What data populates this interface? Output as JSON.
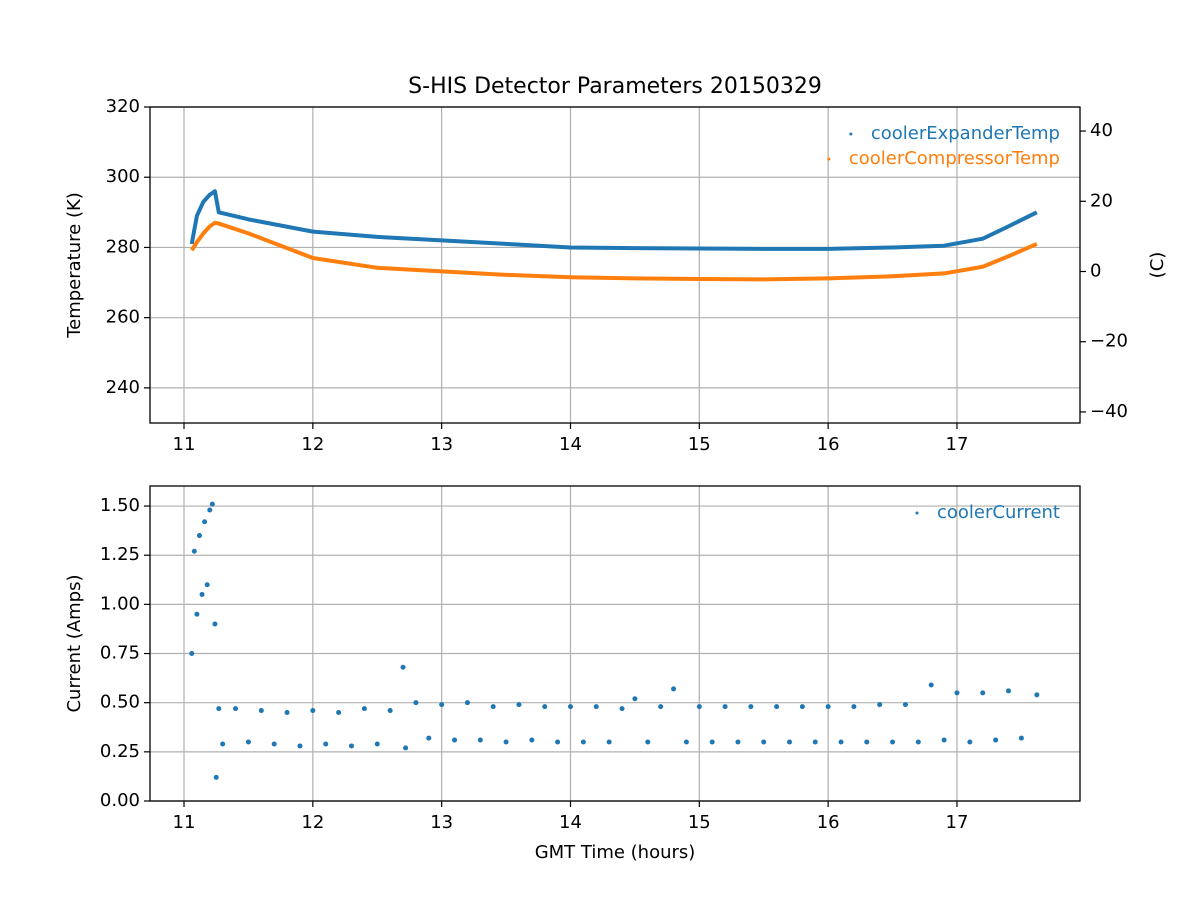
{
  "chart_data": [
    {
      "type": "line",
      "title": "S-HIS Detector Parameters 20150329",
      "ylabel": "Temperature (K)",
      "y2label": "(C)",
      "x": [
        11.06,
        11.1,
        11.15,
        11.2,
        11.24,
        11.27,
        11.5,
        12,
        12.5,
        13,
        13.5,
        14,
        14.5,
        15,
        15.5,
        16,
        16.5,
        16.9,
        17.2,
        17.4,
        17.62
      ],
      "series": [
        {
          "name": "coolerExpanderTemp",
          "color": "#1f77b4",
          "values": [
            281,
            289,
            293,
            295,
            296,
            290,
            288,
            284.5,
            283,
            282,
            281,
            280,
            279.8,
            279.7,
            279.6,
            279.6,
            280,
            280.5,
            282.5,
            286,
            290
          ]
        },
        {
          "name": "coolerCompressorTemp",
          "color": "#ff7f0e",
          "values": [
            279.2,
            281.5,
            284,
            286,
            287,
            286.8,
            284,
            277,
            274.2,
            273.2,
            272.2,
            271.5,
            271.2,
            271,
            270.9,
            271.2,
            271.8,
            272.6,
            274.5,
            277.5,
            281
          ]
        }
      ],
      "xlim": [
        10.736,
        17.955
      ],
      "xticks": [
        11,
        12,
        13,
        14,
        15,
        16,
        17
      ],
      "ylim": [
        230,
        320
      ],
      "yticks": [
        240,
        260,
        280,
        300,
        320
      ],
      "y2lim": [
        -43.15,
        46.85
      ],
      "y2ticks": [
        {
          "value": -40,
          "label": "−40"
        },
        {
          "value": -20,
          "label": "−20"
        },
        0,
        20,
        40
      ],
      "grid": true,
      "legend": "upper right"
    },
    {
      "type": "scatter",
      "xlabel": "GMT Time (hours)",
      "ylabel": "Current (Amps)",
      "x": [
        11.06,
        11.08,
        11.1,
        11.12,
        11.14,
        11.16,
        11.18,
        11.2,
        11.22,
        11.24,
        11.25,
        11.27,
        11.3,
        11.4,
        11.5,
        11.6,
        11.7,
        11.8,
        11.9,
        12.0,
        12.1,
        12.2,
        12.3,
        12.4,
        12.5,
        12.6,
        12.7,
        12.72,
        12.8,
        12.9,
        13.0,
        13.1,
        13.2,
        13.3,
        13.4,
        13.5,
        13.6,
        13.7,
        13.8,
        13.9,
        14.0,
        14.1,
        14.2,
        14.3,
        14.4,
        14.5,
        14.6,
        14.7,
        14.8,
        14.9,
        15.0,
        15.1,
        15.2,
        15.3,
        15.4,
        15.5,
        15.6,
        15.7,
        15.8,
        15.9,
        16.0,
        16.1,
        16.2,
        16.3,
        16.4,
        16.5,
        16.6,
        16.7,
        16.8,
        16.9,
        17.0,
        17.1,
        17.2,
        17.3,
        17.4,
        17.5,
        17.62
      ],
      "series": [
        {
          "name": "coolerCurrent",
          "color": "#1f77b4",
          "values": [
            0.75,
            1.27,
            0.95,
            1.35,
            1.05,
            1.42,
            1.1,
            1.48,
            1.51,
            0.9,
            0.12,
            0.47,
            0.29,
            0.47,
            0.3,
            0.46,
            0.29,
            0.45,
            0.28,
            0.46,
            0.29,
            0.45,
            0.28,
            0.47,
            0.29,
            0.46,
            0.68,
            0.27,
            0.5,
            0.32,
            0.49,
            0.31,
            0.5,
            0.31,
            0.48,
            0.3,
            0.49,
            0.31,
            0.48,
            0.3,
            0.48,
            0.3,
            0.48,
            0.3,
            0.47,
            0.52,
            0.3,
            0.48,
            0.57,
            0.3,
            0.48,
            0.3,
            0.48,
            0.3,
            0.48,
            0.3,
            0.48,
            0.3,
            0.48,
            0.3,
            0.48,
            0.3,
            0.48,
            0.3,
            0.49,
            0.3,
            0.49,
            0.3,
            0.59,
            0.31,
            0.55,
            0.3,
            0.55,
            0.31,
            0.56,
            0.32,
            0.54
          ]
        }
      ],
      "xlim": [
        10.736,
        17.955
      ],
      "xticks": [
        11,
        12,
        13,
        14,
        15,
        16,
        17
      ],
      "ylim": [
        0,
        1.602
      ],
      "yticks": [
        {
          "value": 0,
          "label": "0.00"
        },
        {
          "value": 0.25,
          "label": "0.25"
        },
        {
          "value": 0.5,
          "label": "0.50"
        },
        {
          "value": 0.75,
          "label": "0.75"
        },
        {
          "value": 1,
          "label": "1.00"
        },
        {
          "value": 1.25,
          "label": "1.25"
        },
        {
          "value": 1.5,
          "label": "1.50"
        }
      ],
      "grid": true,
      "legend": "upper right"
    }
  ]
}
